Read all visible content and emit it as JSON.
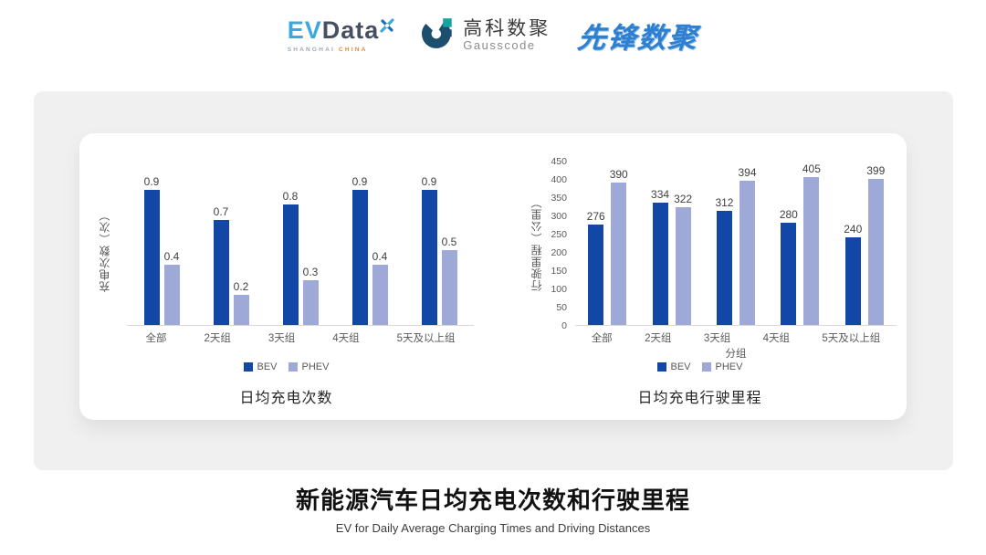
{
  "header": {
    "evdata": {
      "ev": "EV",
      "data": "Data",
      "sub_left": "SHANGHAI",
      "sub_right": "CHINA"
    },
    "gausscode": {
      "cn": "高科数聚",
      "en": "Gausscode"
    },
    "xianfeng": {
      "text": "先锋数聚"
    }
  },
  "chart_data": [
    {
      "type": "bar",
      "title": "日均充电次数",
      "ylabel": "充电次数（次）",
      "xlabel": "",
      "categories": [
        "全部",
        "2天组",
        "3天组",
        "4天组",
        "5天及以上组"
      ],
      "series": [
        {
          "name": "BEV",
          "color": "#1247A5",
          "values": [
            0.9,
            0.7,
            0.8,
            0.9,
            0.9
          ]
        },
        {
          "name": "PHEV",
          "color": "#9EA9D8",
          "values": [
            0.4,
            0.2,
            0.3,
            0.4,
            0.5
          ]
        }
      ],
      "ymax": 1.0,
      "decimals": 1,
      "yticks": [],
      "grid": false,
      "legend_position": "bottom"
    },
    {
      "type": "bar",
      "title": "日均充电行驶里程",
      "ylabel": "行驶里程（公里）",
      "xlabel": "分组",
      "categories": [
        "全部",
        "2天组",
        "3天组",
        "4天组",
        "5天及以上组"
      ],
      "series": [
        {
          "name": "BEV",
          "color": "#1247A5",
          "values": [
            276,
            334,
            312,
            280,
            240
          ]
        },
        {
          "name": "PHEV",
          "color": "#9EA9D8",
          "values": [
            390,
            322,
            394,
            405,
            399
          ]
        }
      ],
      "ymax": 450,
      "decimals": 0,
      "yticks": [
        0,
        50,
        100,
        150,
        200,
        250,
        300,
        350,
        400,
        450
      ],
      "grid": false,
      "legend_position": "bottom"
    }
  ],
  "footer": {
    "title": "新能源汽车日均充电次数和行驶里程",
    "subtitle": "EV for Daily Average Charging Times and Driving Distances"
  },
  "colors": {
    "bev": "#1247A5",
    "phev": "#9EA9D8",
    "panel": "#F0F0F0"
  }
}
